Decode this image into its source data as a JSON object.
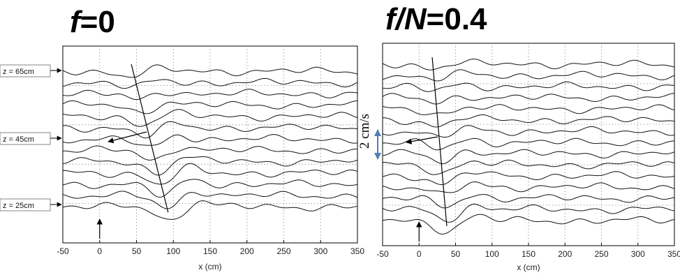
{
  "chart_data": [
    {
      "type": "line",
      "title_italic": "f",
      "title_rest": "=0",
      "xlabel": "x (cm)",
      "xlim": [
        -50,
        350
      ],
      "xticks": [
        -50,
        0,
        50,
        100,
        150,
        200,
        250,
        300,
        350
      ],
      "grid": true,
      "depth_labels": [
        "z = 65cm",
        "z = 45cm",
        "z = 25cm"
      ],
      "trace_count": 13,
      "wave_x0": 40,
      "wave_x1": 95,
      "arrow_x": 0
    },
    {
      "type": "line",
      "title_italic": "f/N",
      "title_rest": "=0.4",
      "xlabel": "x (cm)",
      "xlim": [
        -50,
        350
      ],
      "xticks": [
        -50,
        0,
        50,
        100,
        150,
        200,
        250,
        300,
        350
      ],
      "grid": true,
      "scale_label": "2 cm/s",
      "scale_color": "#4f7fb8",
      "trace_count": 15,
      "wave_x0": 18,
      "wave_x1": 38,
      "arrow_x": 0
    }
  ]
}
